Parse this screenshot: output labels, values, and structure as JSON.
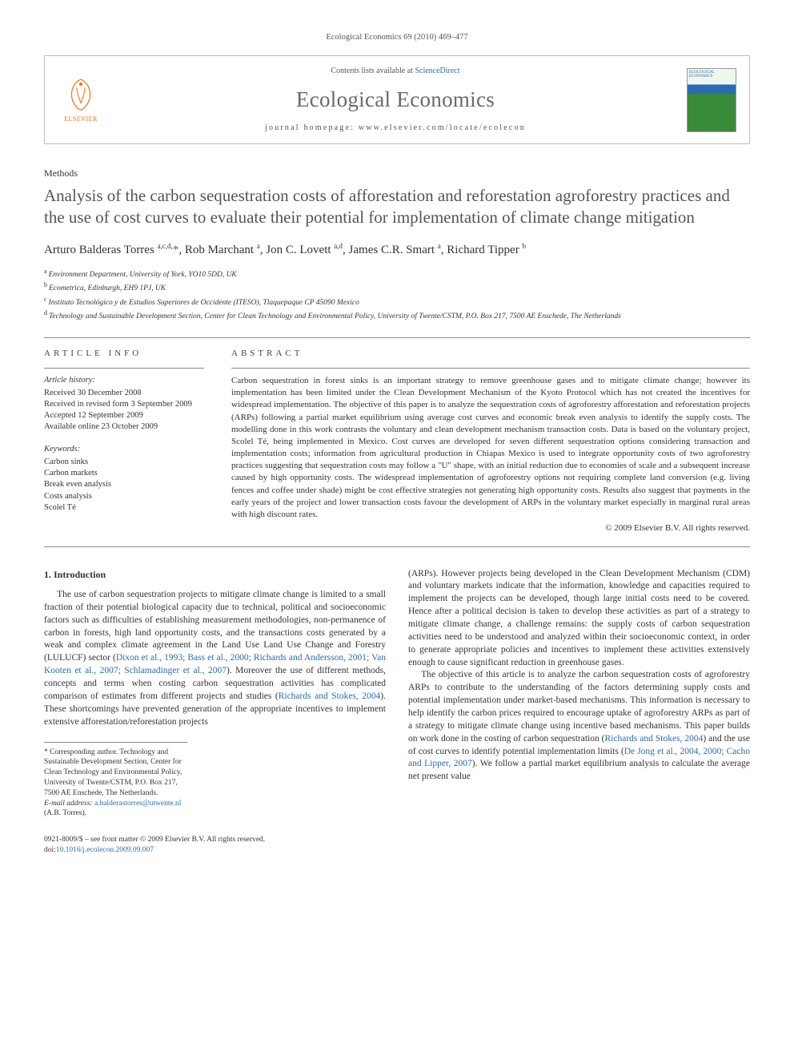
{
  "running_head": "Ecological Economics 69 (2010) 469–477",
  "masthead": {
    "contents_prefix": "Contents lists available at ",
    "contents_link": "ScienceDirect",
    "journal": "Ecological Economics",
    "homepage_prefix": "journal homepage: ",
    "homepage_url": "www.elsevier.com/locate/ecolecon",
    "publisher_label": "ELSEVIER",
    "cover_title": "ECOLOGICAL ECONOMICS"
  },
  "section_label": "Methods",
  "title": "Analysis of the carbon sequestration costs of afforestation and reforestation agroforestry practices and the use of cost curves to evaluate their potential for implementation of climate change mitigation",
  "authors_html": "Arturo Balderas Torres <sup>a,c,d,</sup><span class='star-link'>*</span>, Rob Marchant <sup>a</sup>, Jon C. Lovett <sup>a,d</sup>, James C.R. Smart <sup>a</sup>, Richard Tipper <sup>b</sup>",
  "affiliations": [
    {
      "key": "a",
      "text": "Environment Department, University of York, YO10 5DD, UK"
    },
    {
      "key": "b",
      "text": "Ecometrica, Edinburgh, EH9 1PJ, UK"
    },
    {
      "key": "c",
      "text": "Instituto Tecnológico y de Estudios Superiores de Occidente (ITESO), Tlaquepaque CP 45090 Mexico"
    },
    {
      "key": "d",
      "text": "Technology and Sustainable Development Section, Center for Clean Technology and Environmental Policy, University of Twente/CSTM, P.O. Box 217, 7500 AE Enschede, The Netherlands"
    }
  ],
  "article_info": {
    "head": "ARTICLE INFO",
    "history_label": "Article history:",
    "history": [
      "Received 30 December 2008",
      "Received in revised form 3 September 2009",
      "Accepted 12 September 2009",
      "Available online 23 October 2009"
    ],
    "keywords_label": "Keywords:",
    "keywords": [
      "Carbon sinks",
      "Carbon markets",
      "Break even analysis",
      "Costs analysis",
      "Scolel Té"
    ]
  },
  "abstract": {
    "head": "ABSTRACT",
    "text": "Carbon sequestration in forest sinks is an important strategy to remove greenhouse gases and to mitigate climate change; however its implementation has been limited under the Clean Development Mechanism of the Kyoto Protocol which has not created the incentives for widespread implementation. The objective of this paper is to analyze the sequestration costs of agroforestry afforestation and reforestation projects (ARPs) following a partial market equilibrium using average cost curves and economic break even analysis to identify the supply costs. The modelling done in this work contrasts the voluntary and clean development mechanism transaction costs. Data is based on the voluntary project, Scolel Té, being implemented in Mexico. Cost curves are developed for seven different sequestration options considering transaction and implementation costs; information from agricultural production in Chiapas Mexico is used to integrate opportunity costs of two agroforestry practices suggesting that sequestration costs may follow a \"U\" shape, with an initial reduction due to economies of scale and a subsequent increase caused by high opportunity costs. The widespread implementation of agroforestry options not requiring complete land conversion (e.g. living fences and coffee under shade) might be cost effective strategies not generating high opportunity costs. Results also suggest that payments in the early years of the project and lower transaction costs favour the development of ARPs in the voluntary market especially in marginal rural areas with high discount rates.",
    "copyright": "© 2009 Elsevier B.V. All rights reserved."
  },
  "body": {
    "h1": "1. Introduction",
    "p1a": "The use of carbon sequestration projects to mitigate climate change is limited to a small fraction of their potential biological capacity due to technical, political and socioeconomic factors such as difficulties of establishing measurement methodologies, non-permanence of carbon in forests, high land opportunity costs, and the transactions costs generated by a weak and complex climate agreement in the Land Use Land Use Change and Forestry (LULUCF) sector (",
    "c1": "Dixon et al., 1993; Bass et al., 2000; Richards and Andersson, 2001; Van Kooten et al., 2007; Schlamadinger et al., 2007",
    "p1b": "). Moreover the use of different methods, concepts and terms when costing carbon sequestration activities has complicated comparison of estimates from different projects and studies (",
    "c2": "Richards and Stokes, 2004",
    "p1c": "). These shortcomings have prevented generation of the appropriate incentives to implement extensive afforestation/reforestation projects ",
    "p2": "(ARPs). However projects being developed in the Clean Development Mechanism (CDM) and voluntary markets indicate that the information, knowledge and capacities required to implement the projects can be developed, though large initial costs need to be covered. Hence after a political decision is taken to develop these activities as part of a strategy to mitigate climate change, a challenge remains: the supply costs of carbon sequestration activities need to be understood and analyzed within their socioeconomic context, in order to generate appropriate policies and incentives to implement these activities extensively enough to cause significant reduction in greenhouse gases.",
    "p3a": "The objective of this article is to analyze the carbon sequestration costs of agroforestry ARPs to contribute to the understanding of the factors determining supply costs and potential implementation under market-based mechanisms. This information is necessary to help identify the carbon prices required to encourage uptake of agroforestry ARPs as part of a strategy to mitigate climate change using incentive based mechanisms. This paper builds on work done in the costing of carbon sequestration (",
    "c3": "Richards and Stokes, 2004",
    "p3b": ") and the use of cost curves to identify potential implementation limits (",
    "c4": "De Jong et al., 2004, 2000; Cacho and Lipper, 2007",
    "p3c": "). We follow a partial market equilibrium analysis to calculate the average net present value"
  },
  "footnote": {
    "corr_label": "* Corresponding author.",
    "corr_text": " Technology and Sustainable Development Section, Center for Clean Technology and Environmental Policy, University of Twente/CSTM, P.O. Box 217, 7500 AE Enschede, The Netherlands.",
    "email_label": "E-mail address: ",
    "email": "a.balderastorres@utwente.nl",
    "email_suffix": " (A.B. Torres)."
  },
  "footer": {
    "issn_line": "0921-8009/$ – see front matter © 2009 Elsevier B.V. All rights reserved.",
    "doi_prefix": "doi:",
    "doi": "10.1016/j.ecolecon.2009.09.007"
  },
  "colors": {
    "link": "#2a6bb4",
    "title_grey": "#555555",
    "orange": "#ff6a00",
    "border": "#bbbbbb",
    "rule": "#888888"
  },
  "fonts": {
    "running_head": 10.5,
    "journal_title": 27,
    "article_title": 21,
    "authors": 15,
    "body": 11.5,
    "abstract": 11,
    "affil": 9.5,
    "footer": 9.5
  }
}
